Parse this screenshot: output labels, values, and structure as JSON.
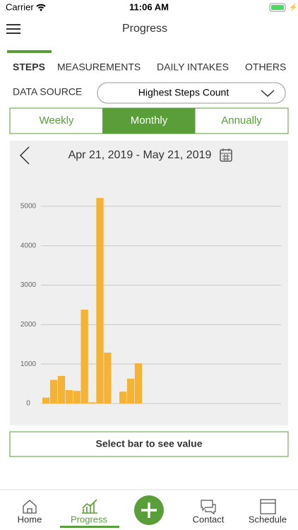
{
  "status_bar": {
    "carrier": "Carrier",
    "time": "11:06 AM"
  },
  "header": {
    "title": "Progress"
  },
  "tabs": [
    "STEPS",
    "MEASUREMENTS",
    "DAILY INTAKES",
    "OTHERS"
  ],
  "data_source": {
    "label": "DATA SOURCE",
    "selected": "Highest Steps Count"
  },
  "periods": [
    "Weekly",
    "Monthly",
    "Annually"
  ],
  "date_range": "Apr 21, 2019 - May 21, 2019",
  "chart_data": {
    "type": "bar",
    "categories": [
      null,
      null,
      null,
      null,
      null,
      null,
      null,
      null,
      null,
      null,
      null,
      null,
      null,
      null,
      null,
      null,
      null,
      null,
      null,
      null,
      null,
      null,
      null,
      null,
      null,
      null,
      null,
      null,
      null,
      null,
      null
    ],
    "values": [
      150,
      600,
      700,
      340,
      320,
      2380,
      30,
      5210,
      1290,
      0,
      300,
      630,
      1020,
      0,
      0,
      0,
      0,
      0,
      0,
      0,
      0,
      0,
      0,
      0,
      0,
      0,
      0,
      0,
      0,
      0,
      0
    ],
    "color": "#f5b335",
    "ylim": [
      0,
      5500
    ],
    "yticks": [
      0,
      1000,
      2000,
      3000,
      4000,
      5000
    ],
    "grid": true
  },
  "button": "Select bar to see value",
  "nav": [
    "Home",
    "Progress",
    "Contact",
    "Schedule"
  ]
}
